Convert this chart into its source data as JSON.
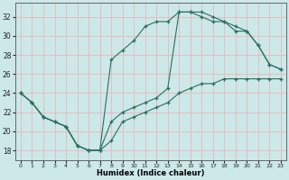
{
  "xlabel": "Humidex (Indice chaleur)",
  "background_color": "#cce8e8",
  "grid_color": "#e8b8b8",
  "line_color": "#2a6e60",
  "xlim": [
    -0.5,
    23.5
  ],
  "ylim": [
    17.0,
    33.5
  ],
  "xticks": [
    0,
    1,
    2,
    3,
    4,
    5,
    6,
    7,
    8,
    9,
    10,
    11,
    12,
    13,
    14,
    15,
    16,
    17,
    18,
    19,
    20,
    21,
    22,
    23
  ],
  "yticks": [
    18,
    20,
    22,
    24,
    26,
    28,
    30,
    32
  ],
  "line1_x": [
    0,
    1,
    2,
    3,
    4,
    5,
    6,
    7,
    8,
    9,
    10,
    11,
    12,
    13,
    14,
    15,
    16,
    17,
    18,
    19,
    20,
    21,
    22,
    23
  ],
  "line1_y": [
    24,
    23,
    21.5,
    21,
    20.5,
    18.5,
    18,
    18,
    19,
    21,
    21.5,
    22,
    22.5,
    23,
    24,
    24.5,
    25,
    25,
    25.5,
    25.5,
    25.5,
    25.5,
    25.5,
    25.5
  ],
  "line2_x": [
    0,
    1,
    2,
    3,
    4,
    5,
    6,
    7,
    8,
    9,
    10,
    11,
    12,
    13,
    14,
    15,
    16,
    17,
    18,
    19,
    20,
    21,
    22,
    23
  ],
  "line2_y": [
    24,
    23,
    21.5,
    21,
    20.5,
    18.5,
    18,
    18,
    27.5,
    28.5,
    29.5,
    31,
    31.5,
    31.5,
    32.5,
    32.5,
    32.5,
    32,
    31.5,
    30.5,
    30.5,
    29,
    27,
    26.5
  ],
  "line3_x": [
    0,
    1,
    2,
    3,
    4,
    5,
    6,
    7,
    8,
    9,
    10,
    11,
    12,
    13,
    14,
    15,
    16,
    17,
    18,
    19,
    20,
    21,
    22,
    23
  ],
  "line3_y": [
    24,
    23,
    21.5,
    21,
    20.5,
    18.5,
    18,
    18,
    21,
    22,
    22.5,
    23,
    23.5,
    24.5,
    32.5,
    32.5,
    32,
    31.5,
    31.5,
    31,
    30.5,
    29,
    27,
    26.5
  ]
}
